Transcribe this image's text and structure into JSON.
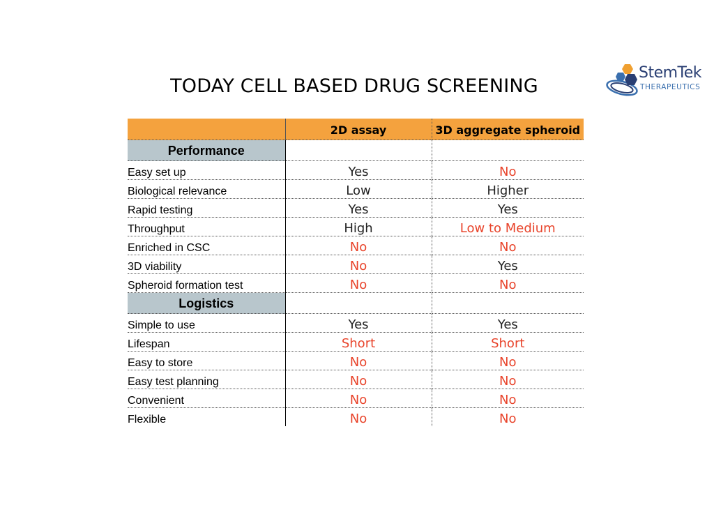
{
  "title": "TODAY CELL BASED DRUG SCREENING",
  "logo": {
    "name": "StemTek",
    "sub": "THERAPEUTICS",
    "colors": {
      "navy": "#2a3f73",
      "blue": "#3a6fae",
      "orange": "#f0a030"
    }
  },
  "table": {
    "headers": [
      "",
      "2D assay",
      "3D aggregate spheroid"
    ],
    "colors": {
      "header": "#f4a23e",
      "section": "#b8c6cc",
      "negative": "#e8432a"
    },
    "sections": [
      {
        "name": "Performance",
        "rows": [
          {
            "label": "Easy set up",
            "a": "Yes",
            "a_neg": false,
            "b": "No",
            "b_neg": true
          },
          {
            "label": "Biological relevance",
            "a": "Low",
            "a_neg": false,
            "b": "Higher",
            "b_neg": false
          },
          {
            "label": "Rapid testing",
            "a": "Yes",
            "a_neg": false,
            "b": "Yes",
            "b_neg": false
          },
          {
            "label": "Throughput",
            "a": "High",
            "a_neg": false,
            "b": "Low to Medium",
            "b_neg": true
          },
          {
            "label": "Enriched in CSC",
            "a": "No",
            "a_neg": true,
            "b": "No",
            "b_neg": true
          },
          {
            "label": "3D viability",
            "a": "No",
            "a_neg": true,
            "b": "Yes",
            "b_neg": false
          },
          {
            "label": "Spheroid formation test",
            "a": "No",
            "a_neg": true,
            "b": "No",
            "b_neg": true
          }
        ]
      },
      {
        "name": "Logistics",
        "rows": [
          {
            "label": "Simple to use",
            "a": "Yes",
            "a_neg": false,
            "b": "Yes",
            "b_neg": false
          },
          {
            "label": "Lifespan",
            "a": "Short",
            "a_neg": true,
            "b": "Short",
            "b_neg": true
          },
          {
            "label": "Easy to store",
            "a": "No",
            "a_neg": true,
            "b": "No",
            "b_neg": true
          },
          {
            "label": "Easy test planning",
            "a": "No",
            "a_neg": true,
            "b": "No",
            "b_neg": true
          },
          {
            "label": "Convenient",
            "a": "No",
            "a_neg": true,
            "b": "No",
            "b_neg": true
          },
          {
            "label": "Flexible",
            "a": "No",
            "a_neg": true,
            "b": "No",
            "b_neg": true
          }
        ]
      }
    ]
  }
}
